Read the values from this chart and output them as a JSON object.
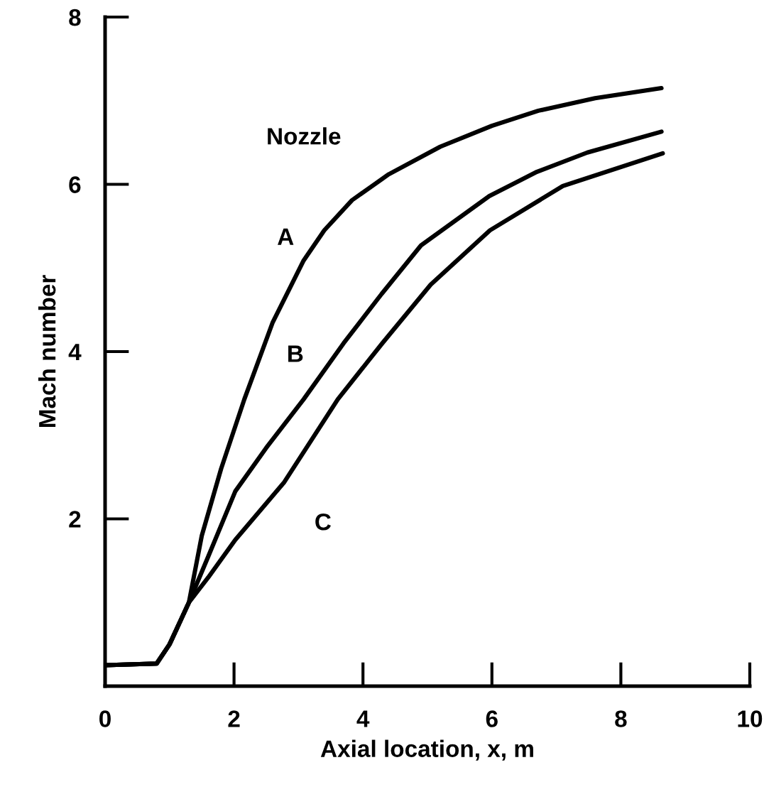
{
  "chart_data": {
    "type": "line",
    "xlabel": "Axial location, x, m",
    "ylabel": "Mach number",
    "annotations": [
      "Nozzle"
    ],
    "series": [
      {
        "name": "A",
        "color": "#000000",
        "x": [
          0,
          0.8,
          1.0,
          1.3,
          1.5,
          1.8,
          2.16,
          2.6,
          3.08,
          3.4,
          3.83,
          4.4,
          5.2,
          6.0,
          6.72,
          7.6,
          8.63
        ],
        "values": [
          0.25,
          0.27,
          0.5,
          1.0,
          1.8,
          2.6,
          3.43,
          4.35,
          5.09,
          5.45,
          5.81,
          6.12,
          6.45,
          6.7,
          6.88,
          7.03,
          7.15
        ]
      },
      {
        "name": "B",
        "color": "#000000",
        "x": [
          0,
          0.8,
          1.0,
          1.3,
          1.6,
          2.02,
          2.5,
          3.08,
          3.7,
          4.29,
          4.9,
          5.96,
          6.7,
          7.48,
          8.63
        ],
        "values": [
          0.25,
          0.27,
          0.5,
          1.0,
          1.55,
          2.33,
          2.85,
          3.43,
          4.1,
          4.69,
          5.27,
          5.86,
          6.15,
          6.38,
          6.63
        ]
      },
      {
        "name": "C",
        "color": "#000000",
        "x": [
          0,
          0.8,
          1.0,
          1.3,
          1.6,
          2.02,
          2.78,
          3.61,
          4.3,
          5.05,
          5.97,
          7.1,
          8.65
        ],
        "values": [
          0.25,
          0.27,
          0.5,
          1.0,
          1.3,
          1.75,
          2.44,
          3.43,
          4.1,
          4.8,
          5.45,
          5.98,
          6.37
        ]
      }
    ],
    "xlim": [
      0,
      10
    ],
    "ylim": [
      0,
      8
    ],
    "xticks": [
      0,
      2,
      4,
      6,
      8,
      10
    ],
    "yticks": [
      2,
      4,
      6,
      8
    ],
    "grid": false,
    "legend": false,
    "marker": "none",
    "line_style": "solid"
  }
}
